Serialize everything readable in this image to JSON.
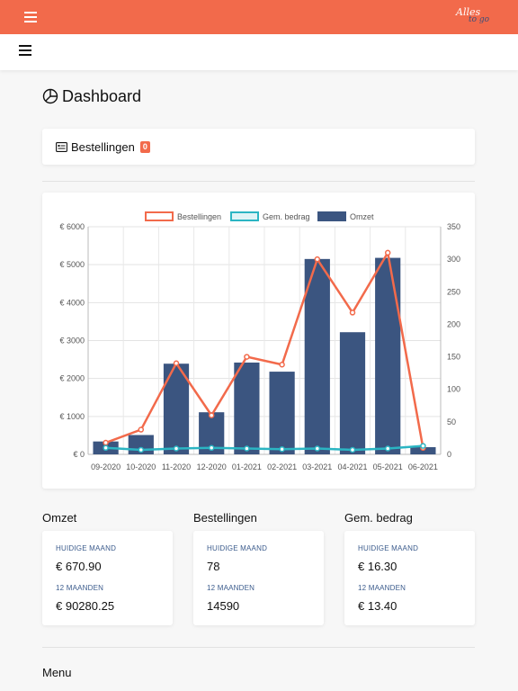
{
  "app": {
    "logo_line1": "Alles",
    "logo_line2": "to go"
  },
  "page": {
    "title": "Dashboard"
  },
  "orders_card": {
    "label": "Bestellingen",
    "badge": "0"
  },
  "chart_data": {
    "type": "bar",
    "categories": [
      "09-2020",
      "10-2020",
      "11-2020",
      "12-2020",
      "01-2021",
      "02-2021",
      "03-2021",
      "04-2021",
      "05-2021",
      "06-2021"
    ],
    "series": [
      {
        "name": "Omzet",
        "type": "bar",
        "axis": "left",
        "values": [
          340,
          510,
          2390,
          1110,
          2420,
          2180,
          5150,
          3220,
          5180,
          190
        ]
      },
      {
        "name": "Bestellingen",
        "type": "line",
        "axis": "right",
        "values": [
          18,
          38,
          140,
          60,
          150,
          138,
          300,
          218,
          310,
          10
        ]
      },
      {
        "name": "Gem. bedrag",
        "type": "line",
        "axis": "right",
        "values": [
          10,
          7,
          9,
          10,
          9,
          8,
          9,
          7,
          9,
          13
        ]
      }
    ],
    "y_left": {
      "min": 0,
      "max": 6000,
      "ticks": [
        "€ 0",
        "€ 1000",
        "€ 2000",
        "€ 3000",
        "€ 4000",
        "€ 5000",
        "€ 6000"
      ]
    },
    "y_right": {
      "min": 0,
      "max": 350,
      "ticks": [
        "0",
        "50",
        "100",
        "150",
        "200",
        "250",
        "300",
        "350"
      ]
    },
    "legend_position": "top",
    "grid": true,
    "colors": {
      "Omzet": "#3b5580",
      "Bestellingen": "#f26a4b",
      "Gem. bedrag": "#2bb5c3"
    }
  },
  "stats": [
    {
      "title": "Omzet",
      "current_label": "HUIDIGE MAAND",
      "current_value": "€ 670.90",
      "year_label": "12 MAANDEN",
      "year_value": "€ 90280.25"
    },
    {
      "title": "Bestellingen",
      "current_label": "HUIDIGE MAAND",
      "current_value": "78",
      "year_label": "12 MAANDEN",
      "year_value": "14590"
    },
    {
      "title": "Gem. bedrag",
      "current_label": "HUIDIGE MAAND",
      "current_value": "€ 16.30",
      "year_label": "12 MAANDEN",
      "year_value": "€ 13.40"
    }
  ],
  "menu": {
    "title": "Menu"
  },
  "colors": {
    "accent": "#f26a4b",
    "navy": "#3b5580",
    "teal": "#2bb5c3"
  }
}
